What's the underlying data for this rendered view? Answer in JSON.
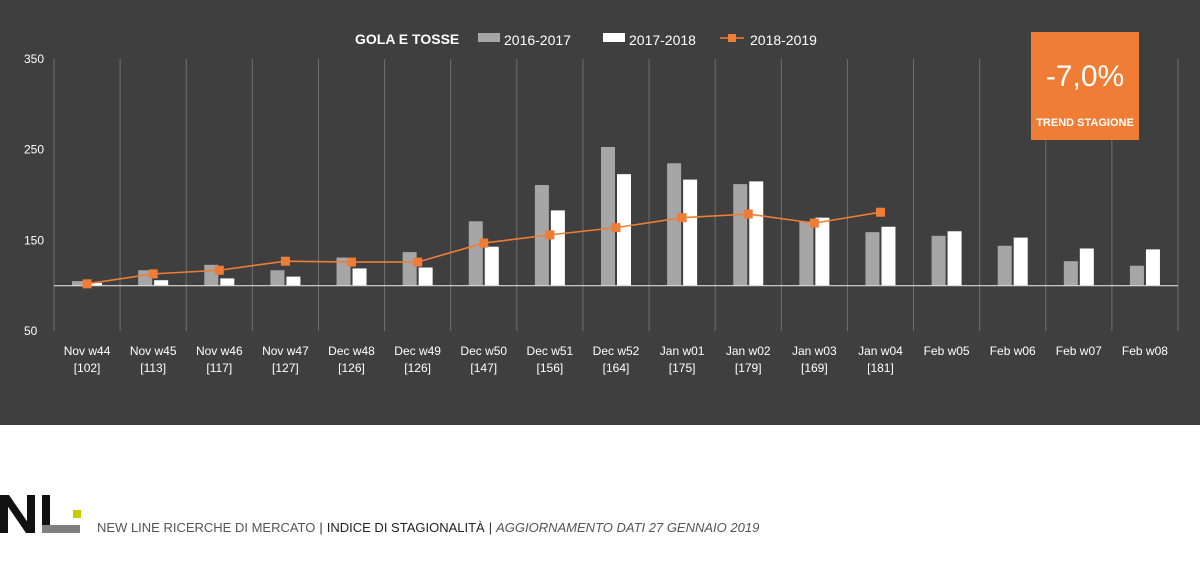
{
  "chart_data": {
    "type": "bar",
    "title": "GOLA E TOSSE",
    "categories": [
      "Nov w44",
      "Nov w45",
      "Nov w46",
      "Nov w47",
      "Dec w48",
      "Dec w49",
      "Dec w50",
      "Dec w51",
      "Dec w52",
      "Jan w01",
      "Jan w02",
      "Jan w03",
      "Jan w04",
      "Feb w05",
      "Feb w06",
      "Feb w07",
      "Feb w08"
    ],
    "category_subs": [
      "[102]",
      "[113]",
      "[117]",
      "[127]",
      "[126]",
      "[126]",
      "[147]",
      "[156]",
      "[164]",
      "[175]",
      "[179]",
      "[169]",
      "[181]",
      "",
      "",
      "",
      ""
    ],
    "series": [
      {
        "name": "2016-2017",
        "type": "bar",
        "color": "#a6a6a6",
        "values": [
          105,
          117,
          123,
          117,
          131,
          137,
          171,
          211,
          253,
          235,
          212,
          171,
          159,
          155,
          144,
          127,
          122
        ]
      },
      {
        "name": "2017-2018",
        "type": "bar",
        "color": "#ffffff",
        "values": [
          103,
          106,
          108,
          110,
          119,
          120,
          143,
          183,
          223,
          217,
          215,
          175,
          165,
          160,
          153,
          141,
          140
        ]
      },
      {
        "name": "2018-2019",
        "type": "line",
        "color": "#ef7d35",
        "values": [
          102,
          113,
          117,
          127,
          126,
          126,
          147,
          156,
          164,
          175,
          179,
          169,
          181,
          null,
          null,
          null,
          null
        ]
      }
    ],
    "yticks": [
      350,
      250,
      150,
      50
    ],
    "ylim": [
      50,
      350
    ],
    "baseline": 100,
    "grid": "vertical",
    "legend_position": "top"
  },
  "trend": {
    "value": "-7,0%",
    "label": "TREND STAGIONE",
    "color": "#ef7d35"
  },
  "footer": {
    "company": "NEW LINE RICERCHE DI MERCATO",
    "separator": "|",
    "index": "INDICE DI STAGIONALITÀ",
    "update": "AGGIORNAMENTO DATI  27 GENNAIO 2019"
  },
  "logo": {
    "letters": "NL",
    "accent_color": "#c8cc00"
  }
}
